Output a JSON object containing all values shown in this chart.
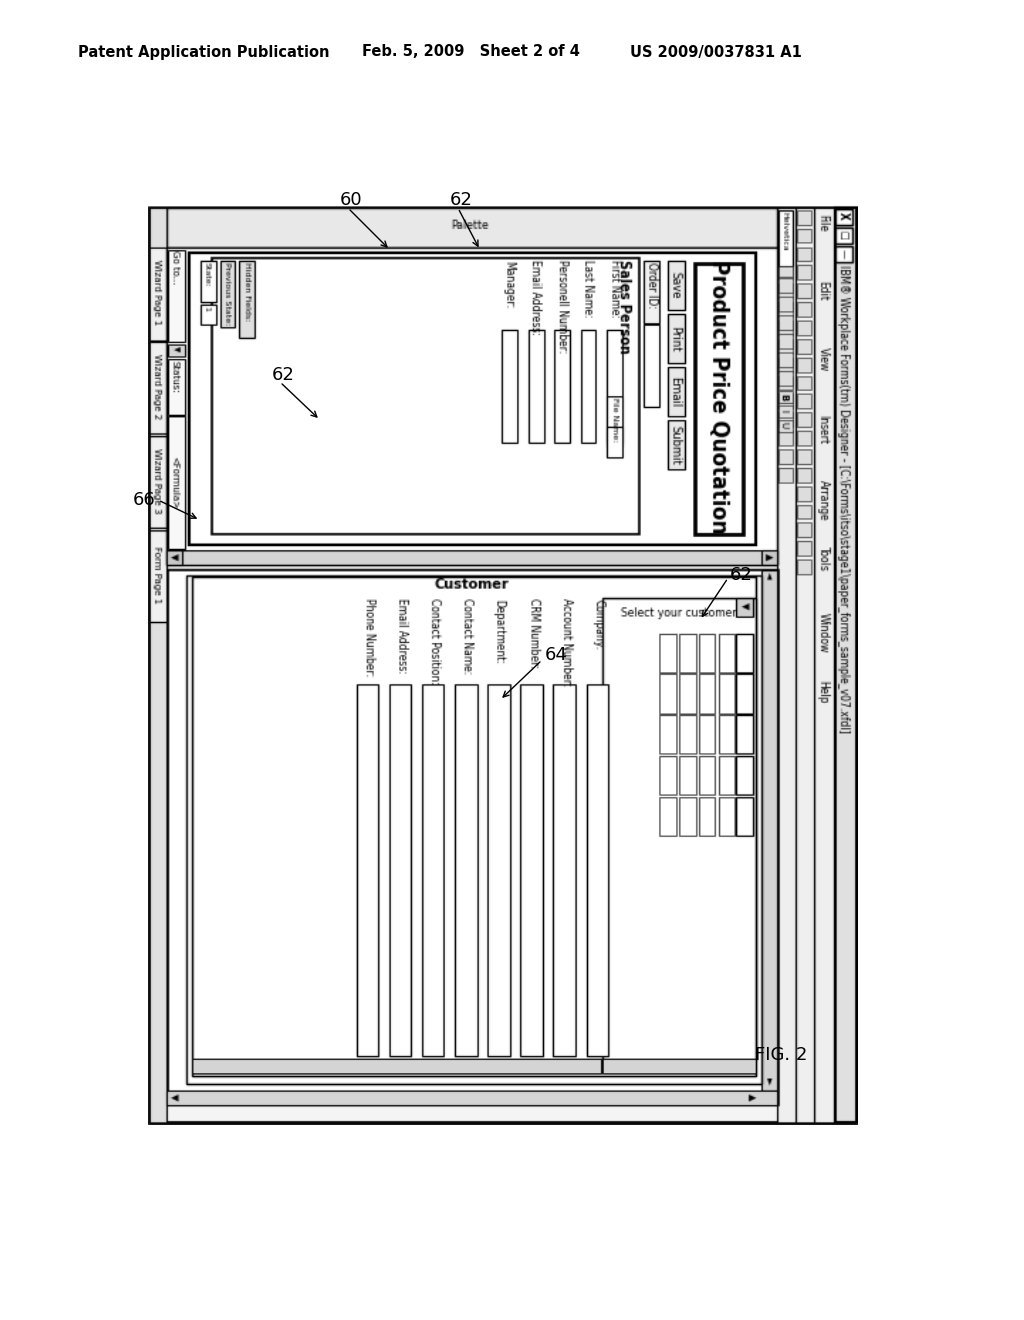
{
  "bg_color": "#ffffff",
  "header_left": "Patent Application Publication",
  "header_mid": "Feb. 5, 2009   Sheet 2 of 4",
  "header_right": "US 2009/0037831 A1",
  "fig_label": "FIG. 2"
}
